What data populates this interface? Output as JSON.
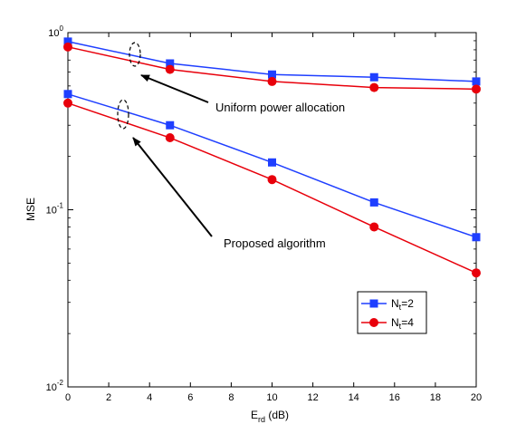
{
  "chart_data": {
    "type": "line",
    "title": "",
    "xlabel": {
      "main": "E",
      "sub": "rd",
      "suffix": " (dB)"
    },
    "ylabel": "MSE",
    "x": [
      0,
      5,
      10,
      15,
      20
    ],
    "xlim": [
      0,
      20
    ],
    "ylim": [
      0.01,
      1
    ],
    "yscale": "log",
    "x_ticks": [
      "0",
      "2",
      "4",
      "6",
      "8",
      "10",
      "12",
      "14",
      "16",
      "18",
      "20"
    ],
    "y_ticks": [
      {
        "base": "10",
        "exp": "0",
        "value": 1
      },
      {
        "base": "10",
        "exp": "-1",
        "value": 0.1
      },
      {
        "base": "10",
        "exp": "-2",
        "value": 0.01
      }
    ],
    "series": [
      {
        "name": {
          "main": "N",
          "sub": "t",
          "suffix": "=2"
        },
        "color": "#1f3fff",
        "marker": "square",
        "values": [
          0.89,
          0.67,
          0.58,
          0.56,
          0.53
        ]
      },
      {
        "name": {
          "main": "N",
          "sub": "t",
          "suffix": "=4"
        },
        "color": "#e8000b",
        "marker": "circle",
        "values": [
          0.83,
          0.62,
          0.53,
          0.49,
          0.48
        ]
      },
      {
        "name": null,
        "color": "#1f3fff",
        "marker": "square",
        "values": [
          0.45,
          0.3,
          0.185,
          0.11,
          0.07
        ]
      },
      {
        "name": null,
        "color": "#e8000b",
        "marker": "circle",
        "values": [
          0.4,
          0.255,
          0.148,
          0.08,
          0.044
        ]
      }
    ],
    "annotations": [
      {
        "text": "Uniform power allocation"
      },
      {
        "text": "Proposed algorithm"
      }
    ],
    "legend_position": "lower-right",
    "grid": false
  }
}
